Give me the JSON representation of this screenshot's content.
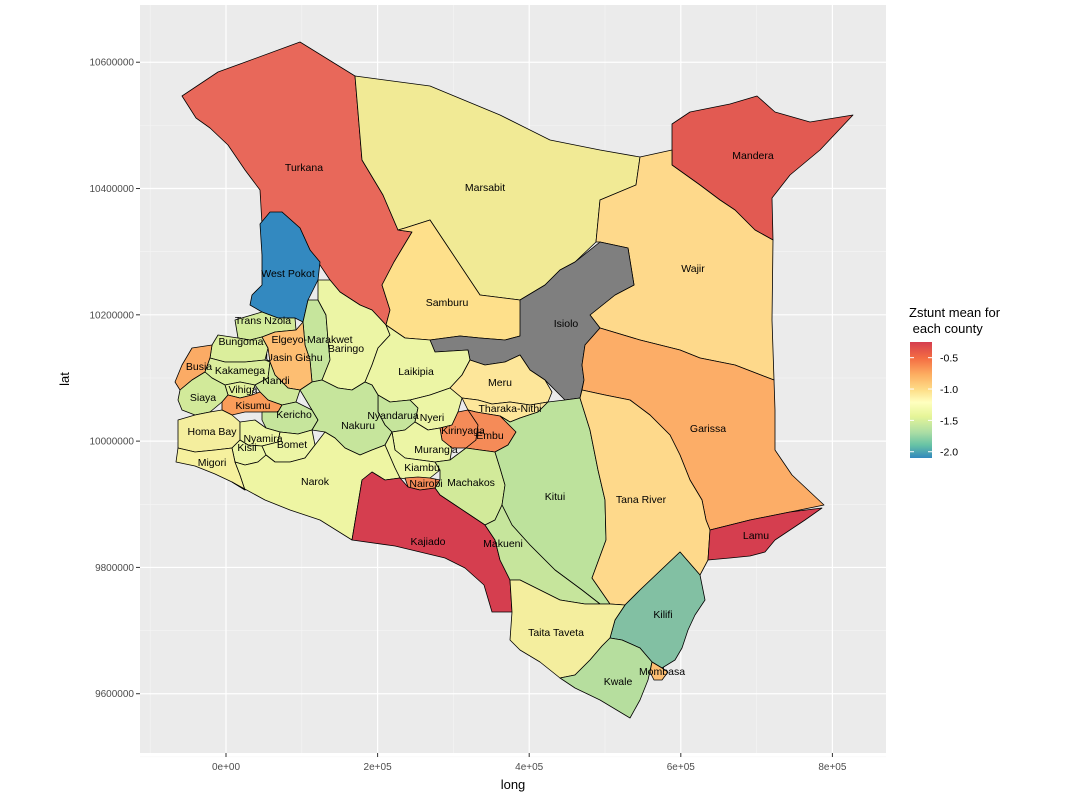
{
  "chart_data": {
    "type": "choropleth",
    "title": "",
    "xlabel": "long",
    "ylabel": "lat",
    "xlim": [
      -100000,
      870000
    ],
    "ylim": [
      9480000,
      10620000
    ],
    "x_ticks": [
      "0e+00",
      "2e+05",
      "4e+05",
      "6e+05",
      "8e+05"
    ],
    "x_tick_values": [
      0,
      200000,
      400000,
      600000,
      800000
    ],
    "y_ticks": [
      "9600000",
      "9800000",
      "10000000",
      "10200000",
      "10400000",
      "10600000"
    ],
    "y_tick_values": [
      9600000,
      9800000,
      10000000,
      10200000,
      10400000,
      10600000
    ],
    "grid": true,
    "background": "#ebebeb",
    "na_color": "#7f7f7f",
    "legend": {
      "title_line1": "Zstunt mean for",
      "title_line2": " each county",
      "position": "right",
      "range": [
        -2.1,
        -0.25
      ],
      "breaks": [
        -0.5,
        -1.0,
        -1.5,
        -2.0
      ],
      "break_labels": [
        "-0.5",
        "-1.0",
        "-1.5",
        "-2.0"
      ],
      "palette": [
        "#d53e4f",
        "#f46d43",
        "#fdae61",
        "#fee08b",
        "#ffffbf",
        "#e6f598",
        "#abdda4",
        "#66c2a5",
        "#3288bd"
      ]
    },
    "counties": [
      {
        "name": "Turkana",
        "value": -0.55,
        "color": "#e8685a"
      },
      {
        "name": "Marsabit",
        "value": -1.2,
        "color": "#f1ea95"
      },
      {
        "name": "Mandera",
        "value": -0.45,
        "color": "#e25a52"
      },
      {
        "name": "Wajir",
        "value": -0.9,
        "color": "#fed98b"
      },
      {
        "name": "West Pokot",
        "value": -2.0,
        "color": "#3389c0"
      },
      {
        "name": "Samburu",
        "value": -0.95,
        "color": "#fee08b"
      },
      {
        "name": "Isiolo",
        "value": null,
        "color": "#7f7f7f"
      },
      {
        "name": "Garissa",
        "value": -0.7,
        "color": "#fcad67"
      },
      {
        "name": "Trans Nzoia",
        "value": -1.45,
        "color": "#d2ea9a"
      },
      {
        "name": "Bungoma",
        "value": -1.4,
        "color": "#dbee9c"
      },
      {
        "name": "Elgeyo-Marakwet",
        "value": -1.5,
        "color": "#c6e59c"
      },
      {
        "name": "Uasin Gishu",
        "value": -0.8,
        "color": "#fdbe72"
      },
      {
        "name": "Baringo",
        "value": -1.3,
        "color": "#ecf5a5"
      },
      {
        "name": "Busia",
        "value": -0.75,
        "color": "#fbab65"
      },
      {
        "name": "Kakamega",
        "value": -1.4,
        "color": "#dbee9c"
      },
      {
        "name": "Nandi",
        "value": -1.45,
        "color": "#d0e89a"
      },
      {
        "name": "Laikipia",
        "value": -1.3,
        "color": "#ecf5a5"
      },
      {
        "name": "Meru",
        "value": -1.0,
        "color": "#fde69a"
      },
      {
        "name": "Vihiga",
        "value": -1.35,
        "color": "#e1f09c"
      },
      {
        "name": "Siaya",
        "value": -1.45,
        "color": "#d2ea9a"
      },
      {
        "name": "Kisumu",
        "value": -0.7,
        "color": "#fa9d5a"
      },
      {
        "name": "Kericho",
        "value": -1.5,
        "color": "#c6e59c"
      },
      {
        "name": "Nyandarua",
        "value": -1.5,
        "color": "#c6e59c"
      },
      {
        "name": "Nyeri",
        "value": -1.3,
        "color": "#ecf5a5"
      },
      {
        "name": "Tharaka-Nithi",
        "value": -1.0,
        "color": "#fde69a"
      },
      {
        "name": "Nakuru",
        "value": -1.5,
        "color": "#c6e59c"
      },
      {
        "name": "Homa Bay",
        "value": -1.15,
        "color": "#f4ee9e"
      },
      {
        "name": "Nyamira",
        "value": -1.25,
        "color": "#eef5a3"
      },
      {
        "name": "Kirinyaga",
        "value": -0.6,
        "color": "#f58b58"
      },
      {
        "name": "Embu",
        "value": -0.6,
        "color": "#f58b58"
      },
      {
        "name": "Kisii",
        "value": -1.3,
        "color": "#ecf5a5"
      },
      {
        "name": "Bomet",
        "value": -1.3,
        "color": "#ecf5a5"
      },
      {
        "name": "Murang'a",
        "value": -1.3,
        "color": "#ecf5a5"
      },
      {
        "name": "Migori",
        "value": -1.1,
        "color": "#f6f09e"
      },
      {
        "name": "Kiambu",
        "value": -1.3,
        "color": "#ecf5a5"
      },
      {
        "name": "Nairobi",
        "value": -0.6,
        "color": "#f58b58"
      },
      {
        "name": "Machakos",
        "value": -1.45,
        "color": "#d2ea9a"
      },
      {
        "name": "Narok",
        "value": -1.25,
        "color": "#eef5a3"
      },
      {
        "name": "Kitui",
        "value": -1.55,
        "color": "#bde29c"
      },
      {
        "name": "Tana River",
        "value": -0.9,
        "color": "#fed98b"
      },
      {
        "name": "Kajiado",
        "value": -0.3,
        "color": "#d53e4f"
      },
      {
        "name": "Makueni",
        "value": -1.5,
        "color": "#c6e59c"
      },
      {
        "name": "Lamu",
        "value": -0.3,
        "color": "#d53e4f"
      },
      {
        "name": "Kilifi",
        "value": -1.75,
        "color": "#82c0a3"
      },
      {
        "name": "Taita Taveta",
        "value": -1.15,
        "color": "#f4ee9e"
      },
      {
        "name": "Kwale",
        "value": -1.55,
        "color": "#b6de9e"
      },
      {
        "name": "Mombasa",
        "value": -0.8,
        "color": "#fdbe72"
      }
    ]
  }
}
